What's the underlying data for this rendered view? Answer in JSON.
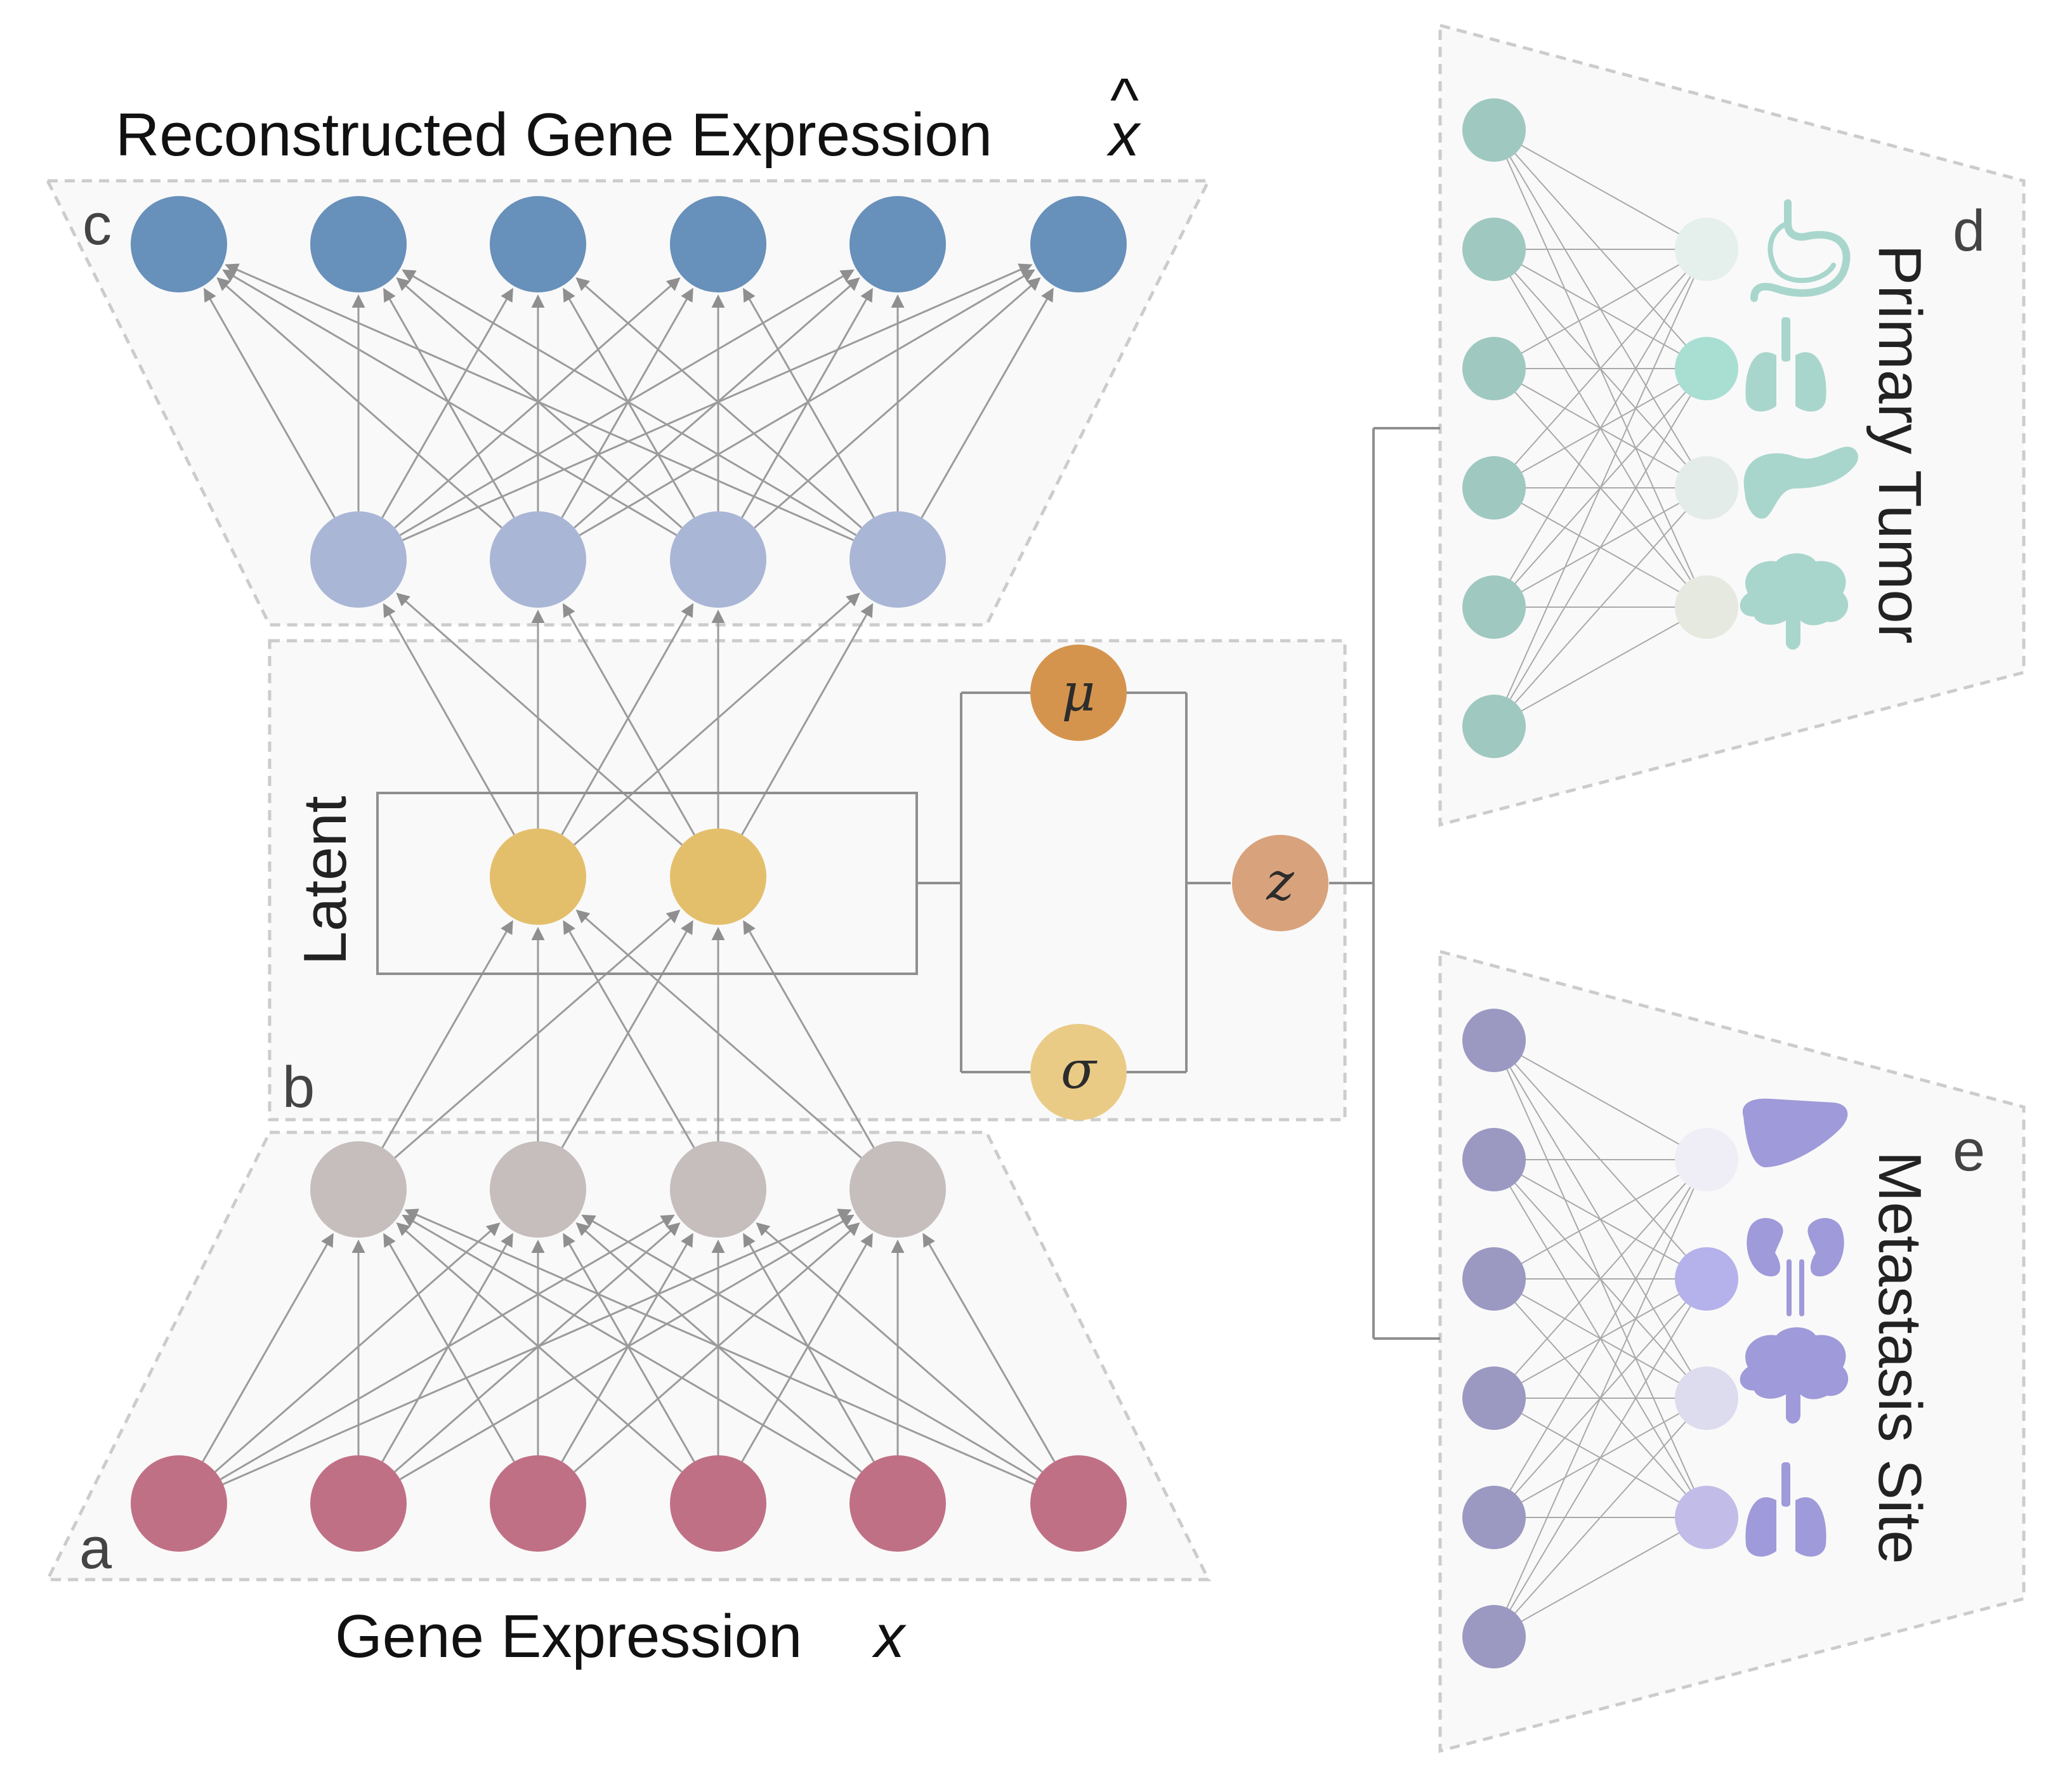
{
  "titles": {
    "top": "Reconstructed Gene Expression",
    "top_symbol": "x",
    "top_hat": "^",
    "bottom": "Gene Expression",
    "bottom_symbol": "x"
  },
  "panels": {
    "a": "a",
    "b": "b",
    "c": "c",
    "d": "d",
    "e": "e"
  },
  "labels": {
    "latent": "Latent",
    "mu": "μ",
    "sigma": "σ",
    "z": "z",
    "primary_tumor": "Primary Tumor",
    "metastasis_site": "Metastasis Site"
  },
  "organs": {
    "primary": [
      "stomach-icon",
      "lungs-icon",
      "pancreas-icon",
      "brain-icon"
    ],
    "metastasis": [
      "liver-icon",
      "kidneys-icon",
      "brain-icon",
      "lungs-icon"
    ]
  },
  "colors": {
    "input": "#c07085",
    "encoder_hidden": "#c6bdbd",
    "latent": "#e4bf6b",
    "decoder_hidden": "#a9b6d6",
    "output": "#6790ba",
    "mu": "#d5944e",
    "sigma": "#eacb86",
    "z": "#d8a27c",
    "primary_nodes": "#9fc8c0",
    "metastasis_nodes": "#9b98c2",
    "primary_icon": "#a9d6cc",
    "metastasis_icon": "#9f9ad9"
  },
  "layers": {
    "output_count": 6,
    "decoder_hidden_count": 4,
    "latent_count": 2,
    "encoder_hidden_count": 4,
    "input_count": 6,
    "primary_input_count": 6,
    "primary_output_count": 4,
    "metastasis_input_count": 6,
    "metastasis_output_count": 4
  },
  "primary_output_fills": [
    "#e5efec",
    "#a8dfd2",
    "#e3ece9",
    "#e5e9e0"
  ],
  "metastasis_output_fills": [
    "#efeef6",
    "#b5b1eb",
    "#dddbee",
    "#c2bde8"
  ]
}
